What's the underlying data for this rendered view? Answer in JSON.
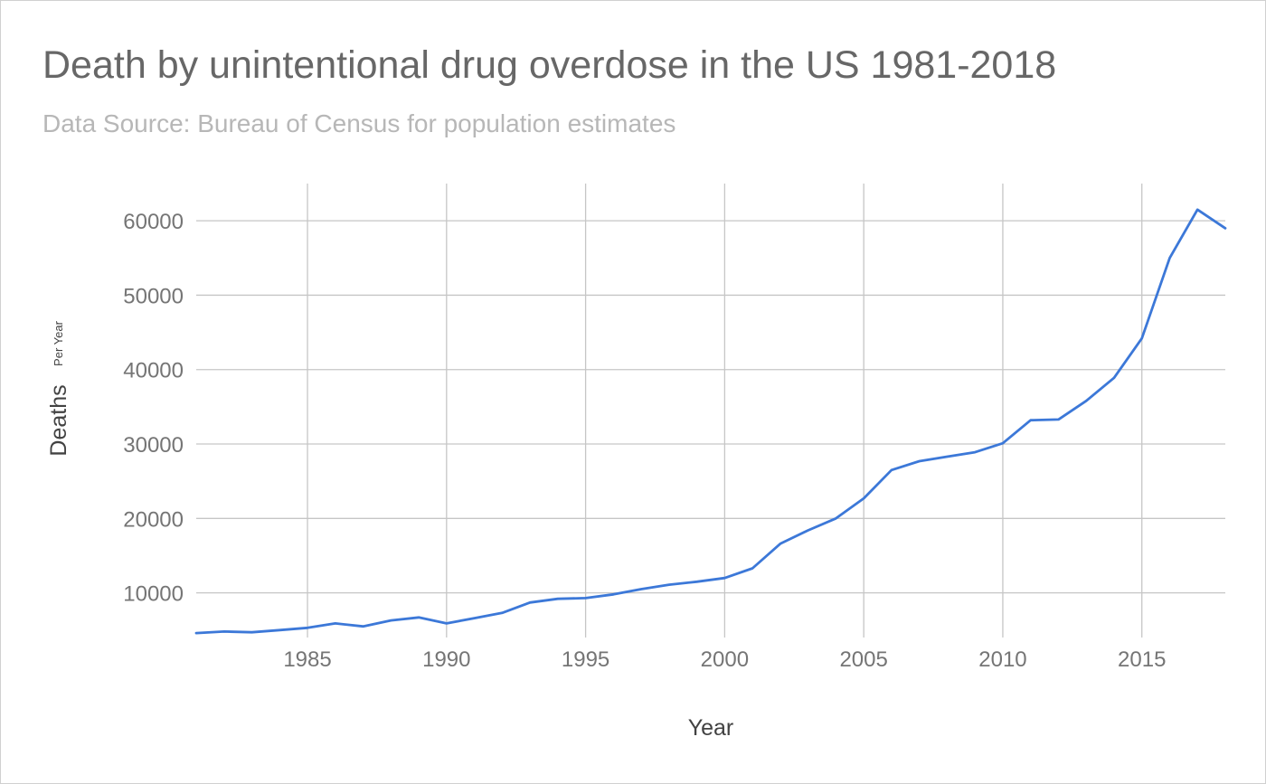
{
  "chart_data": {
    "type": "line",
    "title": "Death by unintentional drug overdose in the US 1981-2018",
    "subtitle": "Data Source: Bureau of Census for population estimates",
    "xlabel": "Year",
    "ylabel": "Deaths",
    "ylabel_suffix": "Per Year",
    "xlim": [
      1981,
      2018
    ],
    "ylim": [
      4000,
      65000
    ],
    "x_ticks": [
      1985,
      1990,
      1995,
      2000,
      2005,
      2010,
      2015
    ],
    "y_ticks": [
      10000,
      20000,
      30000,
      40000,
      50000,
      60000
    ],
    "grid": true,
    "series_color": "#3c78d8",
    "series": [
      {
        "name": "Deaths",
        "x": [
          1981,
          1982,
          1983,
          1984,
          1985,
          1986,
          1987,
          1988,
          1989,
          1990,
          1991,
          1992,
          1993,
          1994,
          1995,
          1996,
          1997,
          1998,
          1999,
          2000,
          2001,
          2002,
          2003,
          2004,
          2005,
          2006,
          2007,
          2008,
          2009,
          2010,
          2011,
          2012,
          2013,
          2014,
          2015,
          2016,
          2017,
          2018
        ],
        "values": [
          4600,
          4800,
          4700,
          5000,
          5300,
          5900,
          5500,
          6300,
          6700,
          5900,
          6600,
          7300,
          8700,
          9200,
          9300,
          9800,
          10500,
          11100,
          11500,
          12000,
          13300,
          16600,
          18400,
          20000,
          22700,
          26500,
          27700,
          28300,
          28900,
          30100,
          33200,
          33300,
          35800,
          38900,
          44200,
          55000,
          61500,
          59000
        ]
      }
    ]
  }
}
